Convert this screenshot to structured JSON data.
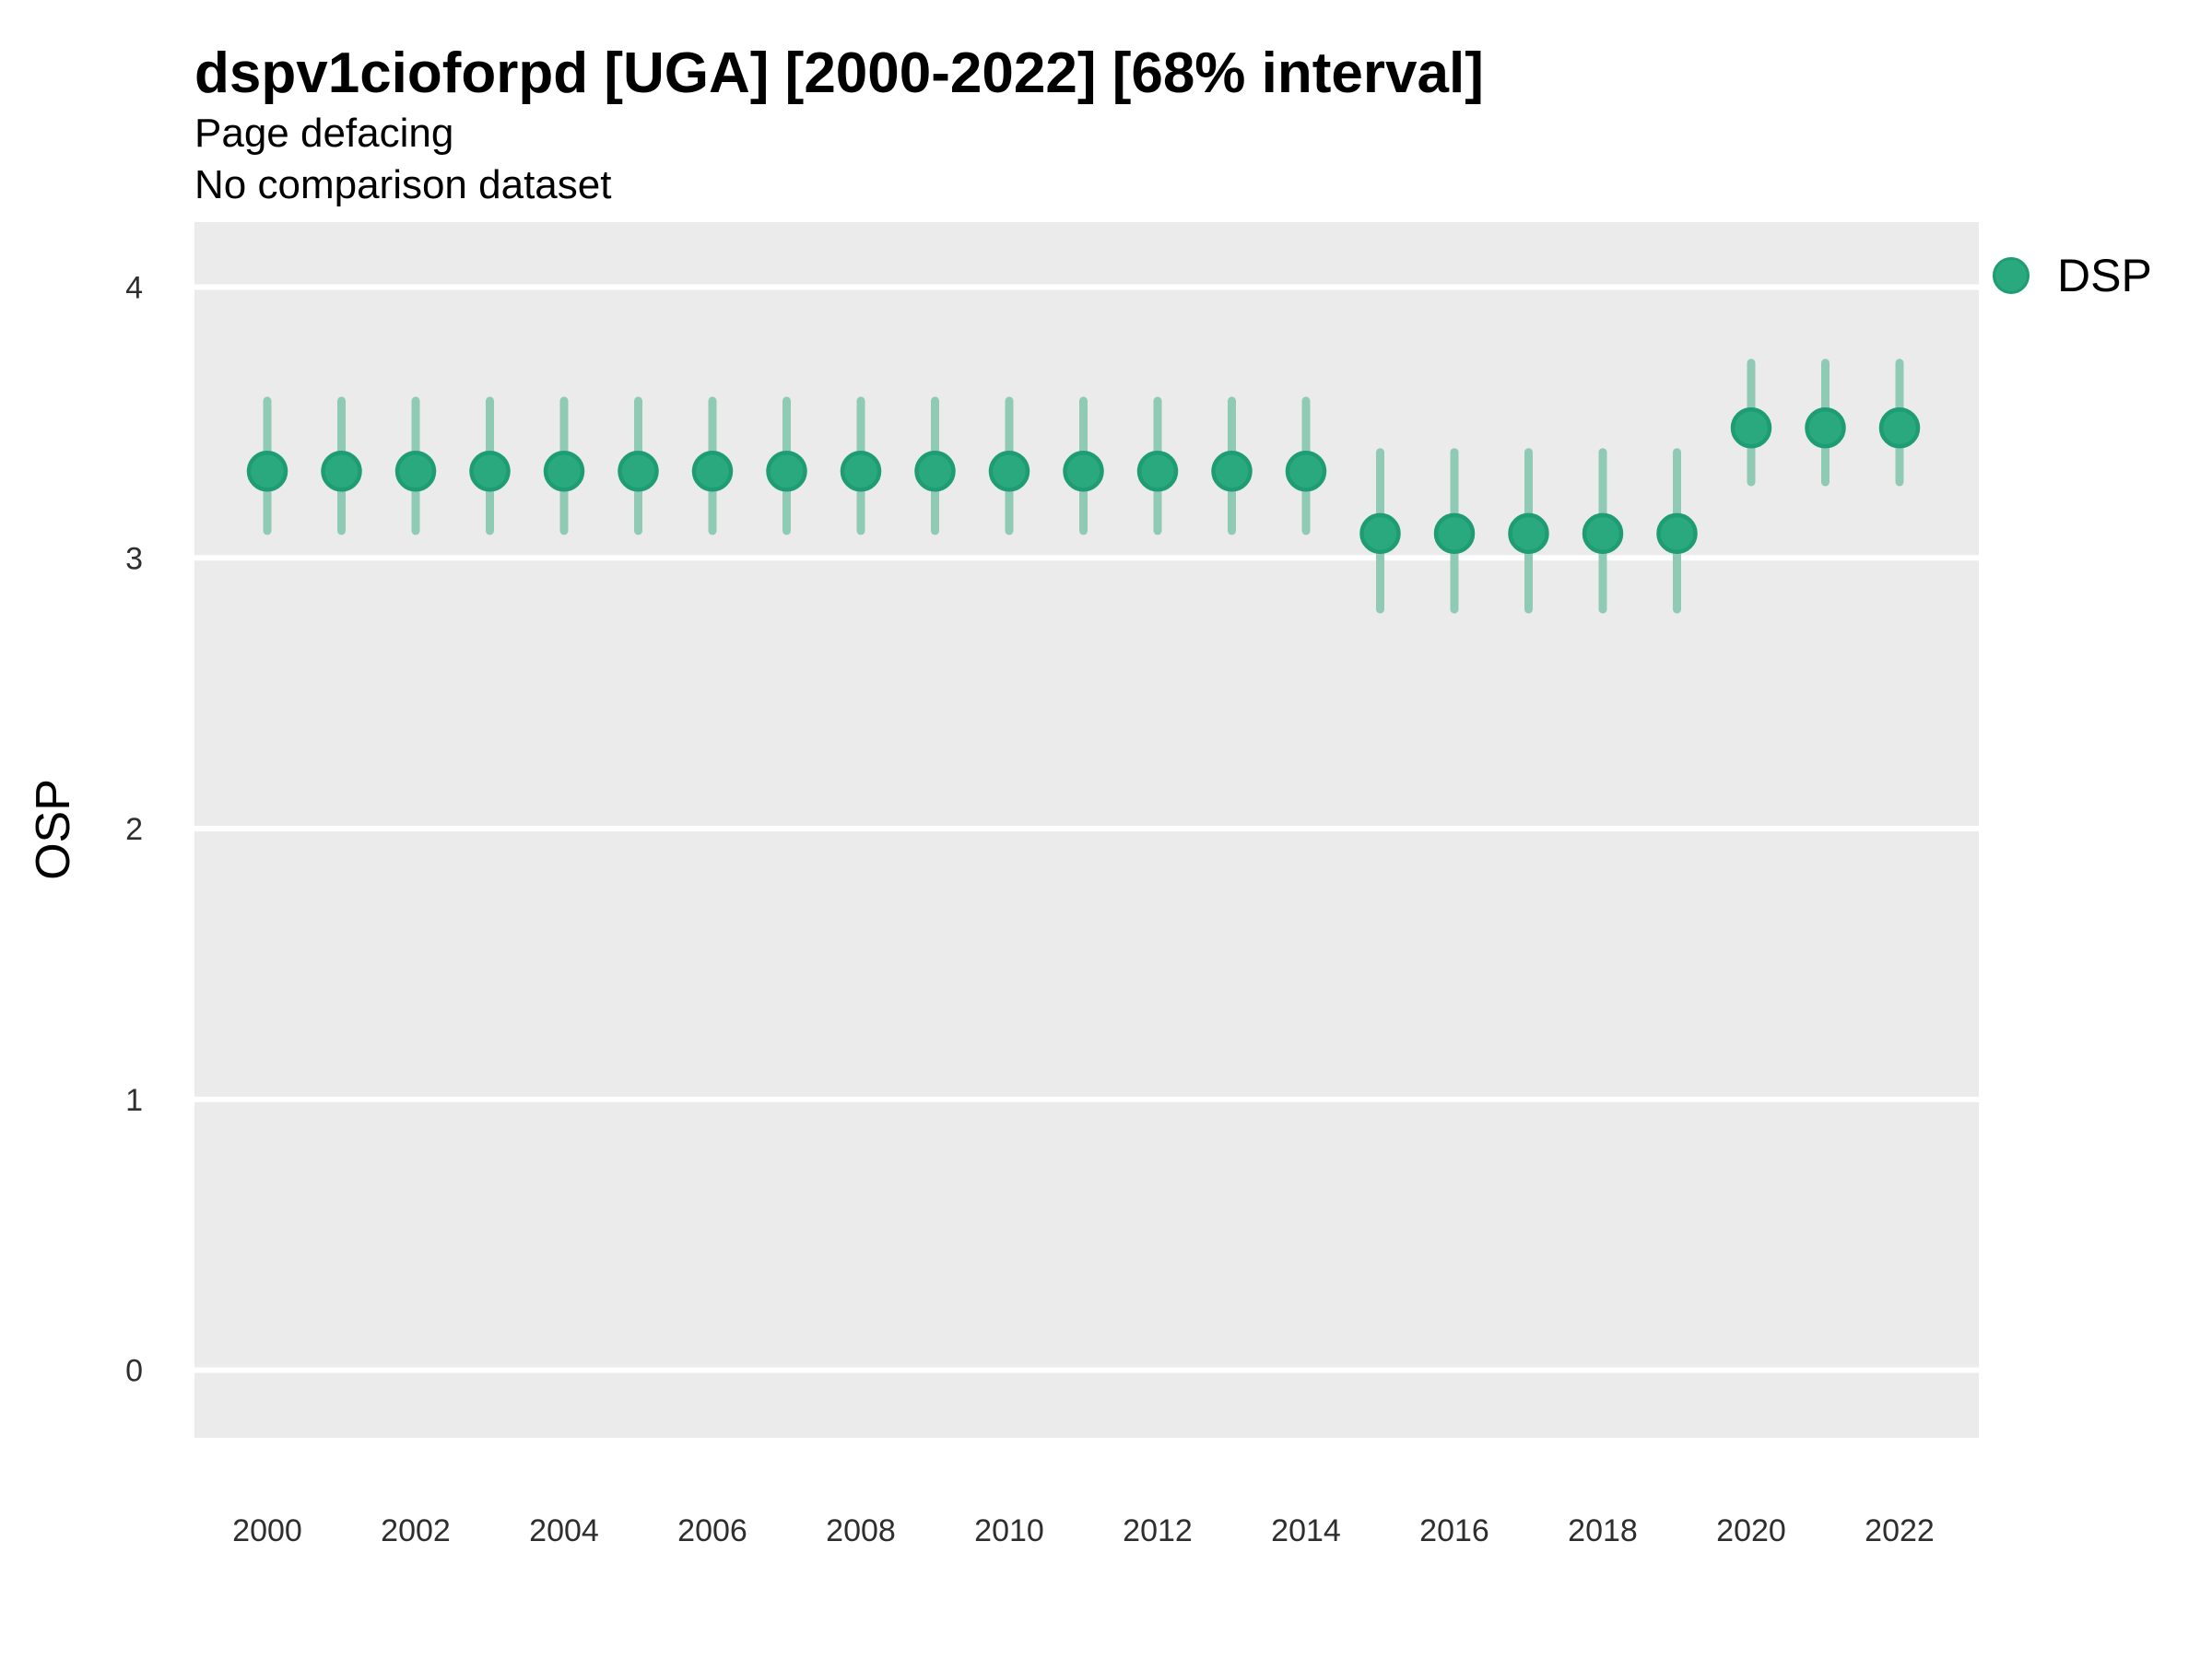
{
  "header": {
    "title": "dspv1cioforpd [UGA] [2000-2022] [68% interval]",
    "subtitle_line1": "Page defacing",
    "subtitle_line2": "No comparison dataset"
  },
  "colors": {
    "panel_bg": "#ebebeb",
    "grid": "#ffffff",
    "point_fill": "#2aa87e",
    "point_stroke": "#1e9c73",
    "interval": "#8fcbb4",
    "tick_text": "#2e2e2e",
    "text": "#000000"
  },
  "chart_data": {
    "type": "pointrange",
    "title": "dspv1cioforpd [UGA] [2000-2022] [68% interval]",
    "subtitle": [
      "Page defacing",
      "No comparison dataset"
    ],
    "xlabel": "",
    "ylabel": "OSP",
    "ylim": [
      -0.25,
      4.24
    ],
    "yticks": [
      0,
      1,
      2,
      3,
      4
    ],
    "xticks": [
      2000,
      2002,
      2004,
      2006,
      2008,
      2010,
      2012,
      2014,
      2016,
      2018,
      2020,
      2022
    ],
    "grid": "horizontal-major-white",
    "interval_level": "68%",
    "legend_position": "right",
    "series": [
      {
        "name": "DSP",
        "x": [
          2000,
          2001,
          2002,
          2003,
          2004,
          2005,
          2006,
          2007,
          2008,
          2009,
          2010,
          2011,
          2012,
          2013,
          2014,
          2015,
          2016,
          2017,
          2018,
          2019,
          2020,
          2021,
          2022
        ],
        "y": [
          3.32,
          3.32,
          3.32,
          3.32,
          3.32,
          3.32,
          3.32,
          3.32,
          3.32,
          3.32,
          3.32,
          3.32,
          3.32,
          3.32,
          3.32,
          3.09,
          3.09,
          3.09,
          3.09,
          3.09,
          3.48,
          3.48,
          3.48
        ],
        "lo": [
          3.1,
          3.1,
          3.1,
          3.1,
          3.1,
          3.1,
          3.1,
          3.1,
          3.1,
          3.1,
          3.1,
          3.1,
          3.1,
          3.1,
          3.1,
          2.81,
          2.81,
          2.81,
          2.81,
          2.81,
          3.28,
          3.28,
          3.28
        ],
        "hi": [
          3.58,
          3.58,
          3.58,
          3.58,
          3.58,
          3.58,
          3.58,
          3.58,
          3.58,
          3.58,
          3.58,
          3.58,
          3.58,
          3.58,
          3.58,
          3.39,
          3.39,
          3.39,
          3.39,
          3.39,
          3.72,
          3.72,
          3.72
        ]
      }
    ]
  }
}
